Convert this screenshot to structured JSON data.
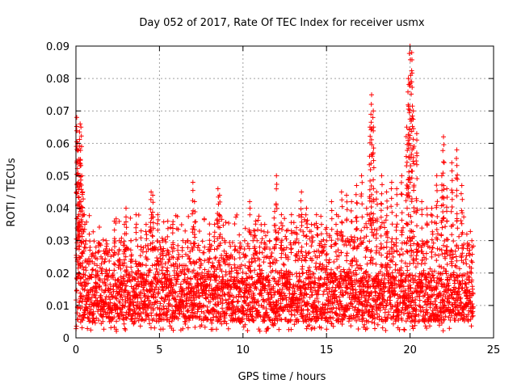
{
  "chart_data": {
    "type": "scatter",
    "title": "Day 052 of 2017, Rate Of TEC Index for receiver usmx",
    "xlabel": "GPS time / hours",
    "ylabel": "ROTI / TECUs",
    "xlim": [
      0,
      25
    ],
    "ylim": [
      0,
      0.09
    ],
    "x_ticks": [
      "0",
      "5",
      "10",
      "15",
      "20",
      "25"
    ],
    "y_ticks": [
      "0",
      "0.01",
      "0.02",
      "0.03",
      "0.04",
      "0.05",
      "0.06",
      "0.07",
      "0.08",
      "0.09"
    ],
    "grid": true,
    "legend": "none",
    "marker": "plus",
    "color": "#ff0000",
    "x_data_range": [
      0,
      23.8
    ],
    "typical_band": [
      0.005,
      0.02
    ],
    "series": [
      {
        "x": [
          0.05,
          0.1,
          0.15,
          0.2,
          0.25,
          0.3,
          0.35,
          0.4,
          0.5,
          0.6,
          0.8,
          1.0,
          1.2,
          1.5,
          1.8,
          2.0,
          2.3,
          2.6,
          2.9,
          3.0,
          3.3,
          3.6,
          3.9,
          4.2,
          4.5,
          4.6,
          4.9,
          5.2,
          5.5,
          5.8,
          6.1,
          6.4,
          6.7,
          7.0,
          7.1,
          7.4,
          7.7,
          8.0,
          8.3,
          8.5,
          8.6,
          8.9,
          9.2,
          9.5,
          9.8,
          10.1,
          10.4,
          10.7,
          11.0,
          11.3,
          11.6,
          11.9,
          12.0,
          12.3,
          12.6,
          12.9,
          13.2,
          13.5,
          13.8,
          14.1,
          14.4,
          14.7,
          15.0,
          15.3,
          15.6,
          15.9,
          16.2,
          16.5,
          16.8,
          17.1,
          17.4,
          17.6,
          17.7,
          17.8,
          18.0,
          18.3,
          18.6,
          18.9,
          19.2,
          19.5,
          19.8,
          19.9,
          20.0,
          20.1,
          20.2,
          20.4,
          20.7,
          21.0,
          21.3,
          21.6,
          21.9,
          22.0,
          22.2,
          22.5,
          22.8,
          23.1,
          23.4,
          23.7
        ],
        "y": [
          0.068,
          0.06,
          0.058,
          0.05,
          0.066,
          0.065,
          0.05,
          0.045,
          0.038,
          0.03,
          0.032,
          0.026,
          0.028,
          0.025,
          0.03,
          0.027,
          0.036,
          0.03,
          0.035,
          0.04,
          0.03,
          0.038,
          0.033,
          0.035,
          0.045,
          0.044,
          0.038,
          0.03,
          0.036,
          0.035,
          0.027,
          0.03,
          0.03,
          0.048,
          0.042,
          0.027,
          0.028,
          0.032,
          0.035,
          0.046,
          0.044,
          0.03,
          0.025,
          0.027,
          0.028,
          0.03,
          0.042,
          0.033,
          0.028,
          0.035,
          0.03,
          0.039,
          0.05,
          0.038,
          0.033,
          0.038,
          0.034,
          0.045,
          0.04,
          0.035,
          0.038,
          0.035,
          0.034,
          0.042,
          0.038,
          0.045,
          0.044,
          0.042,
          0.047,
          0.05,
          0.04,
          0.065,
          0.075,
          0.07,
          0.045,
          0.05,
          0.045,
          0.048,
          0.046,
          0.05,
          0.065,
          0.08,
          0.09,
          0.088,
          0.07,
          0.063,
          0.042,
          0.04,
          0.04,
          0.05,
          0.05,
          0.062,
          0.046,
          0.054,
          0.058,
          0.047,
          0.032,
          0.03
        ]
      }
    ]
  }
}
